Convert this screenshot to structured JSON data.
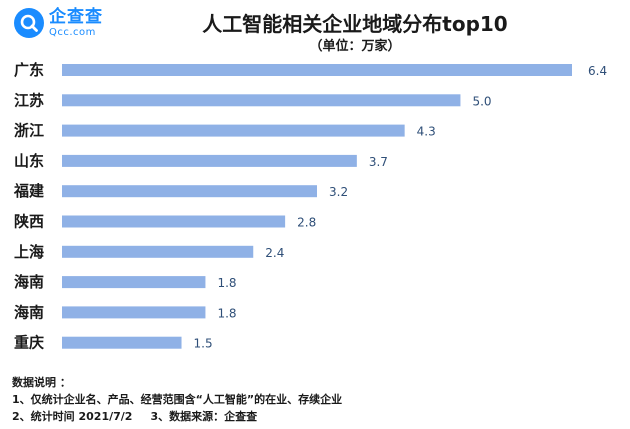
{
  "brand": {
    "name": "企查查",
    "domain": "Qcc.com"
  },
  "chart_data": {
    "type": "bar",
    "orientation": "horizontal",
    "title": "人工智能相关企业地域分布top10",
    "subtitle": "（单位：万家）",
    "categories": [
      "广东",
      "江苏",
      "浙江",
      "山东",
      "福建",
      "陕西",
      "上海",
      "海南",
      "海南",
      "重庆"
    ],
    "values": [
      6.4,
      5.0,
      4.3,
      3.7,
      3.2,
      2.8,
      2.4,
      1.8,
      1.8,
      1.5
    ],
    "value_labels": [
      "6.4",
      "5.0",
      "4.3",
      "3.7",
      "3.2",
      "2.8",
      "2.4",
      "1.8",
      "1.8",
      "1.5"
    ],
    "xlim": [
      0,
      6.4
    ],
    "bar_color": "#8fb1e6",
    "label_color": "#2f4f78",
    "grid": false,
    "legend": "none"
  },
  "notes": {
    "heading": "数据说明 ：",
    "line1": "1、仅统计企业名、产品、经营范围含“人工智能”的在业、存续企业",
    "line2_a": "2、统计时间  2021/7/2",
    "line2_b": "3、数据来源：企查查"
  }
}
